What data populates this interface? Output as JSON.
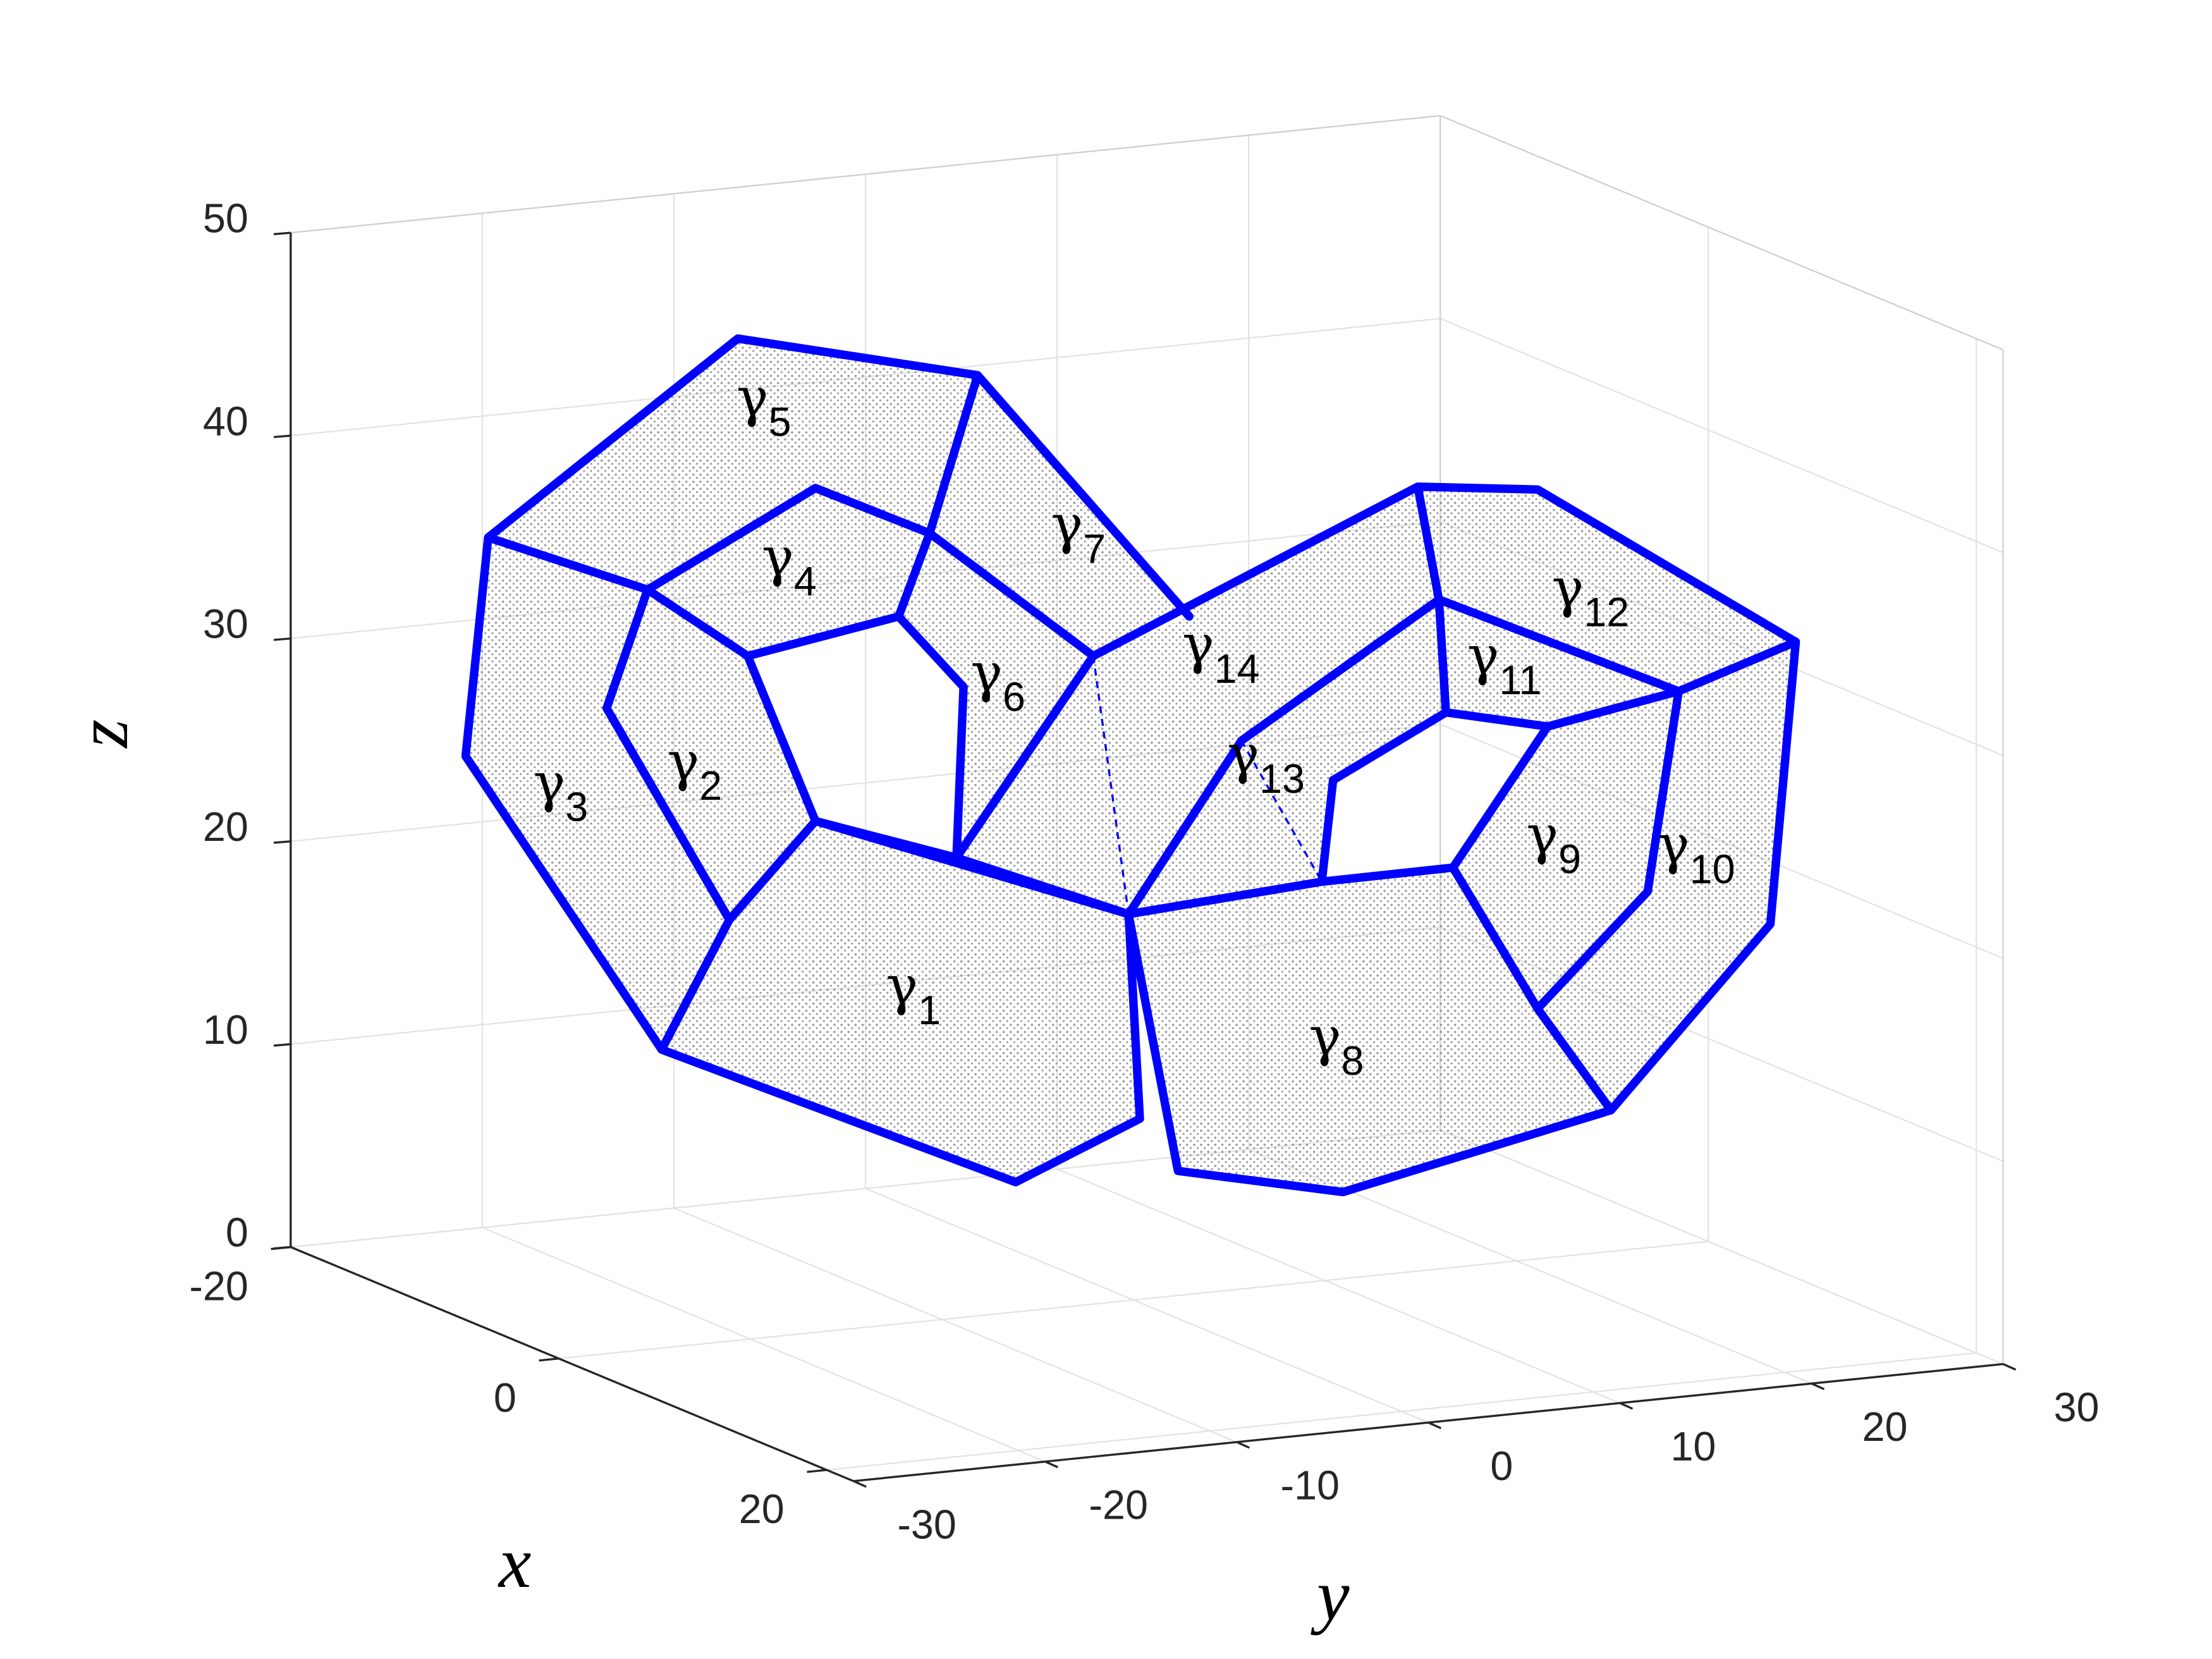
{
  "chart_data": {
    "type": "scatter3d",
    "xlabel": "x",
    "ylabel": "y",
    "zlabel": "z",
    "xlim": [
      -20,
      22
    ],
    "ylim": [
      -30,
      30
    ],
    "zlim": [
      0,
      50
    ],
    "xticks": [
      -20,
      0,
      20
    ],
    "yticks": [
      -30,
      -20,
      -10,
      0,
      10,
      20,
      30
    ],
    "zticks": [
      0,
      10,
      20,
      30,
      40,
      50
    ],
    "grid": true,
    "curve_color": "#0000ff",
    "point_color": "#8c8c8c",
    "annotations": [
      {
        "text": "γ",
        "subscript": "1"
      },
      {
        "text": "γ",
        "subscript": "2"
      },
      {
        "text": "γ",
        "subscript": "3"
      },
      {
        "text": "γ",
        "subscript": "4"
      },
      {
        "text": "γ",
        "subscript": "5"
      },
      {
        "text": "γ",
        "subscript": "6"
      },
      {
        "text": "γ",
        "subscript": "7"
      },
      {
        "text": "γ",
        "subscript": "8"
      },
      {
        "text": "γ",
        "subscript": "9"
      },
      {
        "text": "γ",
        "subscript": "10"
      },
      {
        "text": "γ",
        "subscript": "11"
      },
      {
        "text": "γ",
        "subscript": "12"
      },
      {
        "text": "γ",
        "subscript": "13"
      },
      {
        "text": "γ",
        "subscript": "14"
      }
    ]
  }
}
